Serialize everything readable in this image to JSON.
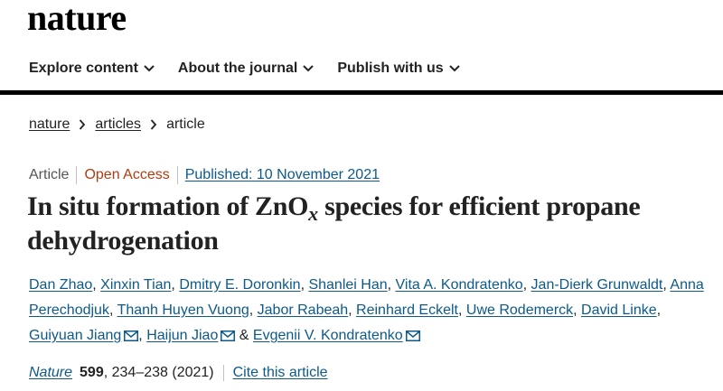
{
  "site": {
    "logo_text": "nature"
  },
  "nav": {
    "items": [
      {
        "label": "Explore content",
        "icon": "chevron-down-icon"
      },
      {
        "label": "About the journal",
        "icon": "chevron-down-icon"
      },
      {
        "label": "Publish with us",
        "icon": "chevron-down-icon"
      }
    ]
  },
  "breadcrumb": {
    "items": [
      "nature",
      "articles"
    ],
    "current": "article",
    "separator_icon": "chevron-right-icon"
  },
  "article": {
    "type": "Article",
    "access": "Open Access",
    "published": "Published: 10 November 2021",
    "title_before": "In situ formation of ZnO",
    "title_subscript": "x",
    "title_after": " species for efficient propane dehydrogenation",
    "authors": [
      "Dan Zhao",
      "Xinxin Tian",
      "Dmitry E. Doronkin",
      "Shanlei Han",
      "Vita A. Kondratenko",
      "Jan-Dierk Grunwaldt",
      "Anna Perechodjuk",
      "Thanh Huyen Vuong",
      "Jabor Rabeah",
      "Reinhard Eckelt",
      "Uwe Rodemerck",
      "David Linke",
      "Guiyuan Jiang",
      "Haijun Jiao",
      "Evgenii V. Kondratenko"
    ],
    "author_conjunction": "&",
    "citation": {
      "journal": "Nature",
      "volume": "599",
      "pages": ", 234–238 (2021)",
      "cite_label": "Cite this article"
    }
  },
  "colors": {
    "link": "#0c5a8b",
    "open_access": "#b23b12",
    "text": "#222222"
  }
}
